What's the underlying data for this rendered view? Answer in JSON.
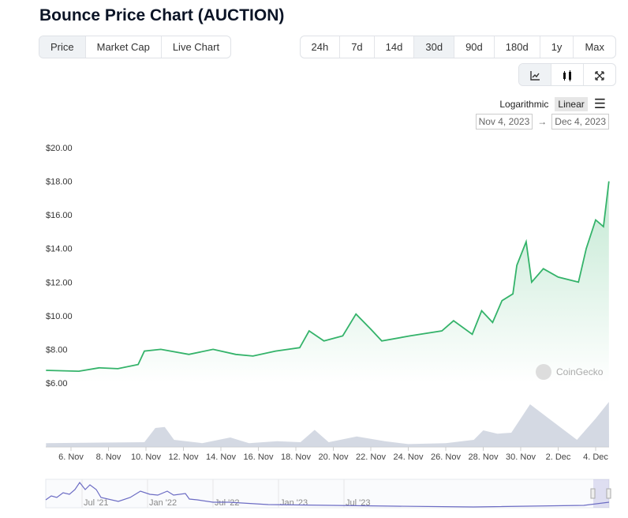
{
  "title": "Bounce Price Chart (AUCTION)",
  "tabs": [
    {
      "label": "Price",
      "active": true
    },
    {
      "label": "Market Cap"
    },
    {
      "label": "Live Chart"
    }
  ],
  "ranges": [
    {
      "label": "24h"
    },
    {
      "label": "7d"
    },
    {
      "label": "14d"
    },
    {
      "label": "30d",
      "active": true
    },
    {
      "label": "90d"
    },
    {
      "label": "180d"
    },
    {
      "label": "1y"
    },
    {
      "label": "Max"
    }
  ],
  "chart_type_icons": [
    "line-chart-icon",
    "candlestick-icon",
    "fullscreen-icon"
  ],
  "scale": {
    "log": "Logarithmic",
    "linear": "Linear",
    "selected": "Linear"
  },
  "date_range": {
    "from": "Nov 4, 2023",
    "arrow": "→",
    "to": "Dec 4, 2023"
  },
  "watermark": "CoinGecko",
  "colors": {
    "price_line": "#34b36a",
    "volume": "#c9d0dc",
    "navigator": "#6c6cc4"
  },
  "chart_data": {
    "type": "line",
    "title": "",
    "ylim": [
      6,
      20
    ],
    "yticks": [
      "$6.00",
      "$8.00",
      "$10.00",
      "$12.00",
      "$14.00",
      "$16.00",
      "$18.00",
      "$20.00"
    ],
    "xticks": [
      "6. Nov",
      "8. Nov",
      "10. Nov",
      "12. Nov",
      "14. Nov",
      "16. Nov",
      "18. Nov",
      "20. Nov",
      "22. Nov",
      "24. Nov",
      "26. Nov",
      "28. Nov",
      "30. Nov",
      "2. Dec",
      "4. Dec"
    ],
    "price": [
      [
        "2023-11-04T16:00",
        6.75
      ],
      [
        "2023-11-06T10:00",
        6.7
      ],
      [
        "2023-11-07T12:00",
        6.9
      ],
      [
        "2023-11-08T12:00",
        6.85
      ],
      [
        "2023-11-09T14:00",
        7.1
      ],
      [
        "2023-11-09T22:00",
        7.9
      ],
      [
        "2023-11-10T19:00",
        8.0
      ],
      [
        "2023-11-12T07:00",
        7.7
      ],
      [
        "2023-11-13T14:00",
        8.0
      ],
      [
        "2023-11-14T19:00",
        7.7
      ],
      [
        "2023-11-15T17:00",
        7.6
      ],
      [
        "2023-11-16T22:00",
        7.9
      ],
      [
        "2023-11-18T05:00",
        8.1
      ],
      [
        "2023-11-18T17:00",
        9.1
      ],
      [
        "2023-11-19T12:00",
        8.5
      ],
      [
        "2023-11-20T12:00",
        8.8
      ],
      [
        "2023-11-21T05:00",
        10.1
      ],
      [
        "2023-11-22T00:00",
        9.2
      ],
      [
        "2023-11-22T14:00",
        8.5
      ],
      [
        "2023-11-24T02:00",
        8.8
      ],
      [
        "2023-11-25T19:00",
        9.1
      ],
      [
        "2023-11-26T10:00",
        9.7
      ],
      [
        "2023-11-27T10:00",
        8.9
      ],
      [
        "2023-11-27T22:00",
        10.3
      ],
      [
        "2023-11-28T12:00",
        9.6
      ],
      [
        "2023-11-29T00:00",
        10.9
      ],
      [
        "2023-11-29T14:00",
        11.3
      ],
      [
        "2023-11-29T19:00",
        13.0
      ],
      [
        "2023-11-30T07:00",
        14.4
      ],
      [
        "2023-11-30T14:00",
        12.0
      ],
      [
        "2023-12-01T05:00",
        12.8
      ],
      [
        "2023-12-02T00:00",
        12.3
      ],
      [
        "2023-12-03T02:00",
        12.0
      ],
      [
        "2023-12-03T12:00",
        14.0
      ],
      [
        "2023-12-04T00:00",
        15.7
      ],
      [
        "2023-12-04T10:00",
        15.3
      ],
      [
        "2023-12-04T17:00",
        18.0
      ]
    ],
    "volume_relative": [
      [
        "2023-11-04T16:00",
        0.08
      ],
      [
        "2023-11-09T22:00",
        0.1
      ],
      [
        "2023-11-10T12:00",
        0.4
      ],
      [
        "2023-11-11T00:00",
        0.42
      ],
      [
        "2023-11-11T12:00",
        0.15
      ],
      [
        "2023-11-13T00:00",
        0.08
      ],
      [
        "2023-11-14T12:00",
        0.2
      ],
      [
        "2023-11-15T12:00",
        0.08
      ],
      [
        "2023-11-17T00:00",
        0.12
      ],
      [
        "2023-11-18T06:00",
        0.1
      ],
      [
        "2023-11-19T00:00",
        0.36
      ],
      [
        "2023-11-19T18:00",
        0.1
      ],
      [
        "2023-11-21T06:00",
        0.22
      ],
      [
        "2023-11-22T18:00",
        0.12
      ],
      [
        "2023-11-24T00:00",
        0.06
      ],
      [
        "2023-11-26T00:00",
        0.08
      ],
      [
        "2023-11-27T12:00",
        0.15
      ],
      [
        "2023-11-28T00:00",
        0.35
      ],
      [
        "2023-11-28T18:00",
        0.28
      ],
      [
        "2023-11-29T12:00",
        0.3
      ],
      [
        "2023-11-30T12:00",
        0.9
      ],
      [
        "2023-12-01T12:00",
        0.6
      ],
      [
        "2023-12-02T12:00",
        0.3
      ],
      [
        "2023-12-03T00:00",
        0.15
      ],
      [
        "2023-12-04T00:00",
        0.6
      ],
      [
        "2023-12-04T17:00",
        0.95
      ]
    ]
  },
  "navigator": {
    "labels": [
      "Jul '21",
      "Jan '22",
      "Jul '22",
      "Jan '23",
      "Jul '23"
    ]
  }
}
